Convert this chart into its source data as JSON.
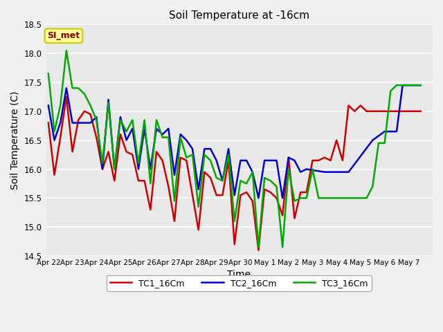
{
  "title": "Soil Temperature at -16cm",
  "xlabel": "Time",
  "ylabel": "Soil Temperature (C)",
  "ylim": [
    14.5,
    18.5
  ],
  "annotation": "SI_met",
  "bg_color": "#e8e8e8",
  "plot_bg": "#e8e8e8",
  "grid_color": "#ffffff",
  "series": {
    "TC1_16Cm": {
      "color": "#cc0000",
      "x": [
        0,
        1,
        2,
        3,
        4,
        5,
        6,
        7,
        8,
        9,
        10,
        11,
        12,
        13,
        14,
        15,
        16,
        17,
        18,
        19,
        20,
        21,
        22,
        23,
        24,
        25,
        26,
        27,
        28,
        29,
        30,
        31,
        32,
        33,
        34,
        35,
        36,
        37,
        38,
        39,
        40,
        41,
        42,
        43,
        44,
        45,
        46,
        47,
        48,
        49,
        50,
        51,
        52,
        53,
        54,
        55,
        56,
        57,
        58,
        59,
        60,
        61,
        62
      ],
      "y": [
        16.8,
        15.9,
        16.55,
        17.25,
        16.3,
        16.85,
        17.0,
        16.95,
        16.55,
        16.0,
        16.3,
        15.8,
        16.6,
        16.3,
        16.25,
        15.8,
        15.8,
        15.3,
        16.3,
        16.15,
        15.7,
        15.1,
        16.2,
        16.15,
        15.55,
        14.95,
        15.95,
        15.85,
        15.55,
        15.55,
        16.15,
        14.7,
        15.55,
        15.6,
        15.45,
        14.6,
        15.65,
        15.6,
        15.5,
        15.2,
        16.2,
        15.15,
        15.6,
        15.6,
        16.15,
        16.15,
        16.2,
        16.15,
        16.5,
        16.15,
        17.1,
        17.0,
        17.1,
        17.0,
        17.0,
        17.0,
        17.0,
        17.0,
        17.0,
        17.0,
        17.0,
        17.0,
        17.0
      ]
    },
    "TC2_16Cm": {
      "color": "#0000cc",
      "x": [
        0,
        1,
        2,
        3,
        4,
        5,
        6,
        7,
        8,
        9,
        10,
        11,
        12,
        13,
        14,
        15,
        16,
        17,
        18,
        19,
        20,
        21,
        22,
        23,
        24,
        25,
        26,
        27,
        28,
        29,
        30,
        31,
        32,
        33,
        34,
        35,
        36,
        37,
        38,
        39,
        40,
        41,
        42,
        43,
        46,
        50,
        54,
        56,
        57,
        58,
        59,
        60,
        61,
        62
      ],
      "y": [
        17.1,
        16.5,
        16.8,
        17.4,
        16.8,
        16.8,
        16.8,
        16.8,
        16.9,
        16.0,
        17.2,
        16.0,
        16.9,
        16.5,
        16.7,
        16.0,
        16.7,
        16.0,
        16.7,
        16.6,
        16.7,
        15.9,
        16.6,
        16.5,
        16.35,
        15.65,
        16.35,
        16.35,
        16.15,
        15.8,
        16.35,
        15.55,
        16.15,
        16.15,
        15.95,
        15.5,
        16.15,
        16.15,
        16.15,
        15.5,
        16.2,
        16.15,
        15.95,
        16.0,
        15.95,
        15.95,
        16.5,
        16.65,
        16.65,
        16.65,
        17.45,
        17.45,
        17.45,
        17.45
      ]
    },
    "TC3_16Cm": {
      "color": "#00aa00",
      "x": [
        0,
        1,
        2,
        3,
        4,
        5,
        6,
        7,
        8,
        9,
        10,
        11,
        12,
        13,
        14,
        15,
        16,
        17,
        18,
        19,
        20,
        21,
        22,
        23,
        24,
        25,
        26,
        27,
        28,
        29,
        30,
        31,
        32,
        33,
        34,
        35,
        36,
        37,
        38,
        39,
        40,
        41,
        42,
        43,
        44,
        45,
        46,
        47,
        48,
        49,
        50,
        51,
        52,
        53,
        54,
        55,
        56,
        57,
        58,
        59,
        60,
        61,
        62
      ],
      "y": [
        17.65,
        16.65,
        17.1,
        18.05,
        17.4,
        17.4,
        17.3,
        17.1,
        16.85,
        16.1,
        17.15,
        16.0,
        16.85,
        16.65,
        16.85,
        16.1,
        16.85,
        15.75,
        16.85,
        16.55,
        16.55,
        15.45,
        16.55,
        16.2,
        16.25,
        15.35,
        16.25,
        16.15,
        15.85,
        15.8,
        16.25,
        15.1,
        15.8,
        15.75,
        15.95,
        14.65,
        15.85,
        15.8,
        15.7,
        14.65,
        16.0,
        15.45,
        15.5,
        15.5,
        16.0,
        15.5,
        15.5,
        15.5,
        15.5,
        15.5,
        15.5,
        15.5,
        15.5,
        15.5,
        15.7,
        16.45,
        16.45,
        17.35,
        17.45,
        17.45,
        17.45,
        17.45,
        17.45
      ]
    }
  },
  "xtick_labels": [
    "Apr 22",
    "Apr 23",
    "Apr 24",
    "Apr 25",
    "Apr 26",
    "Apr 27",
    "Apr 28",
    "Apr 29",
    "Apr 30",
    "May 1",
    "May 2",
    "May 3",
    "May 4",
    "May 5",
    "May 6",
    "May 7"
  ],
  "xtick_positions": [
    0,
    4,
    8,
    12,
    16,
    20,
    24,
    28,
    32,
    36,
    40,
    44,
    48,
    52,
    56,
    60
  ],
  "ytick_positions": [
    14.5,
    15.0,
    15.5,
    16.0,
    16.5,
    17.0,
    17.5,
    18.0,
    18.5
  ]
}
